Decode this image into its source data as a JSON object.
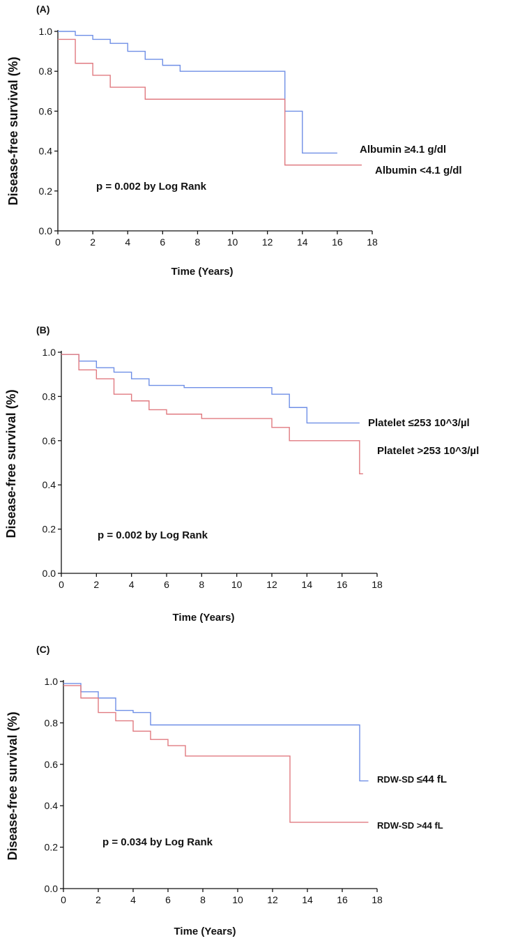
{
  "colors": {
    "high_group": "#6f8fe6",
    "low_group": "#e07a80",
    "axis": "#111111"
  },
  "chart_data": [
    {
      "type": "line",
      "panel_label": "(A)",
      "title": "",
      "xlabel": "Time (Years)",
      "ylabel": "Disease-free survival (%)",
      "xlim": [
        0,
        18
      ],
      "ylim": [
        0,
        1.0
      ],
      "x_ticks": [
        "0",
        "2",
        "4",
        "6",
        "8",
        "10",
        "12",
        "14",
        "16",
        "18"
      ],
      "y_ticks": [
        "0.0",
        "0.2",
        "0.4",
        "0.6",
        "0.8",
        "1.0"
      ],
      "annotation": "p = 0.002 by Log Rank",
      "series": [
        {
          "name": "Albumin ≥4.1 g/dl",
          "legend": "Albumin  ≥4.1 g/dl",
          "color": "#6f8fe6",
          "steps": [
            [
              0,
              1.0
            ],
            [
              1,
              0.98
            ],
            [
              2,
              0.96
            ],
            [
              3,
              0.94
            ],
            [
              4,
              0.9
            ],
            [
              5,
              0.86
            ],
            [
              6,
              0.83
            ],
            [
              7,
              0.8
            ],
            [
              13,
              0.6
            ],
            [
              14,
              0.39
            ],
            [
              16,
              0.39
            ]
          ]
        },
        {
          "name": "Albumin <4.1 g/dl",
          "legend": "Albumin <4.1 g/dl",
          "color": "#e07a80",
          "steps": [
            [
              0,
              0.96
            ],
            [
              1,
              0.84
            ],
            [
              2,
              0.78
            ],
            [
              3,
              0.72
            ],
            [
              5,
              0.66
            ],
            [
              13,
              0.33
            ],
            [
              17.4,
              0.33
            ]
          ]
        }
      ]
    },
    {
      "type": "line",
      "panel_label": "(B)",
      "title": "",
      "xlabel": "Time (Years)",
      "ylabel": "Disease-free survival (%)",
      "xlim": [
        0,
        18
      ],
      "ylim": [
        0,
        1.0
      ],
      "x_ticks": [
        "0",
        "2",
        "4",
        "6",
        "8",
        "10",
        "12",
        "14",
        "16",
        "18"
      ],
      "y_ticks": [
        "0.0",
        "0.2",
        "0.4",
        "0.6",
        "0.8",
        "1.0"
      ],
      "annotation": "p = 0.002 by Log Rank",
      "series": [
        {
          "name": "Platelet ≤253 10^3/µl",
          "legend": "Platelet  ≤253 10^3/µl",
          "color": "#6f8fe6",
          "steps": [
            [
              0,
              0.99
            ],
            [
              1,
              0.96
            ],
            [
              2,
              0.93
            ],
            [
              3,
              0.91
            ],
            [
              4,
              0.88
            ],
            [
              5,
              0.85
            ],
            [
              7,
              0.84
            ],
            [
              12,
              0.81
            ],
            [
              13,
              0.75
            ],
            [
              14,
              0.68
            ],
            [
              17,
              0.68
            ]
          ]
        },
        {
          "name": "Platelet >253 10^3/µl",
          "legend": "Platelet >253  10^3/µl",
          "color": "#e07a80",
          "steps": [
            [
              0,
              0.99
            ],
            [
              1,
              0.92
            ],
            [
              2,
              0.88
            ],
            [
              3,
              0.81
            ],
            [
              4,
              0.78
            ],
            [
              5,
              0.74
            ],
            [
              6,
              0.72
            ],
            [
              8,
              0.7
            ],
            [
              12,
              0.66
            ],
            [
              13,
              0.6
            ],
            [
              17,
              0.45
            ],
            [
              17.2,
              0.45
            ]
          ]
        }
      ]
    },
    {
      "type": "line",
      "panel_label": "(C)",
      "title": "",
      "xlabel": "Time (Years)",
      "ylabel": "Disease-free survival (%)",
      "xlim": [
        0,
        18
      ],
      "ylim": [
        0,
        1.0
      ],
      "x_ticks": [
        "0",
        "2",
        "4",
        "6",
        "8",
        "10",
        "12",
        "14",
        "16",
        "18"
      ],
      "y_ticks": [
        "0.0",
        "0.2",
        "0.4",
        "0.6",
        "0.8",
        "1.0"
      ],
      "annotation": "p = 0.034 by Log Rank",
      "series": [
        {
          "name": "RDW-SD ≤44 fL",
          "legend_prefix": "RDW-SD ",
          "legend_suffix": "≤44 fL",
          "color": "#6f8fe6",
          "steps": [
            [
              0,
              0.99
            ],
            [
              1,
              0.95
            ],
            [
              2,
              0.92
            ],
            [
              3,
              0.86
            ],
            [
              4,
              0.85
            ],
            [
              5,
              0.79
            ],
            [
              17,
              0.52
            ],
            [
              17.5,
              0.52
            ]
          ]
        },
        {
          "name": "RDW-SD >44 fL",
          "legend_prefix": "RDW-SD ",
          "legend_suffix": ">44 fL",
          "color": "#e07a80",
          "steps": [
            [
              0,
              0.98
            ],
            [
              1,
              0.92
            ],
            [
              2,
              0.85
            ],
            [
              3,
              0.81
            ],
            [
              4,
              0.76
            ],
            [
              5,
              0.72
            ],
            [
              6,
              0.69
            ],
            [
              7,
              0.64
            ],
            [
              13,
              0.32
            ],
            [
              17.5,
              0.32
            ]
          ]
        }
      ]
    }
  ]
}
